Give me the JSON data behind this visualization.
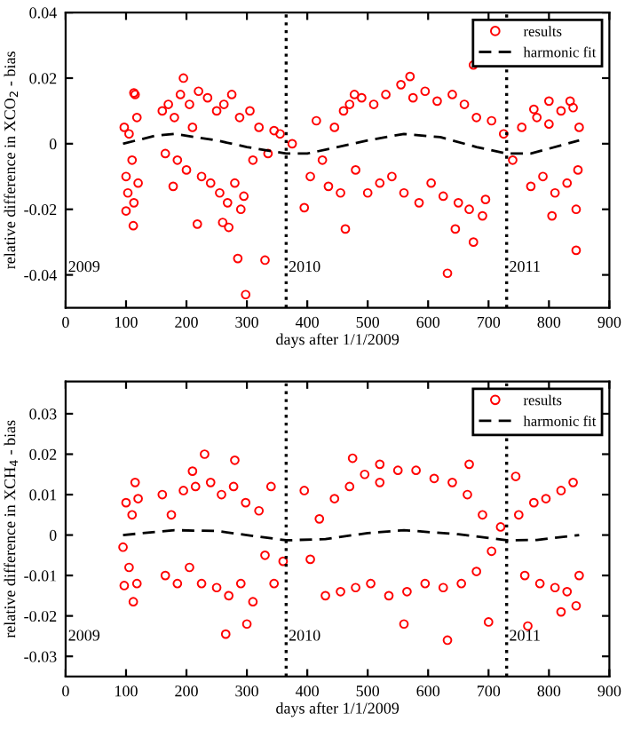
{
  "chart_data": [
    {
      "type": "scatter",
      "xlabel": "days after 1/1/2009",
      "ylabel": "relative difference in XCO$_{2}$ - bias",
      "xlim": [
        0,
        900
      ],
      "ylim": [
        -0.05,
        0.04
      ],
      "xticks": [
        0,
        100,
        200,
        300,
        400,
        500,
        600,
        700,
        800,
        900
      ],
      "yticks": [
        -0.04,
        -0.02,
        0,
        0.02,
        0.04
      ],
      "grid": false,
      "legend": "top right",
      "series": [
        {
          "name": "results",
          "color": "#ff0000",
          "marker": "circle",
          "x": [
            100,
            112,
            113,
            115,
            113,
            178,
            195,
            218,
            285,
            298,
            330,
            270,
            260,
            290,
            395,
            463,
            478,
            570,
            632,
            675,
            675,
            690,
            645,
            805,
            845,
            835,
            800,
            775,
            845,
            97,
            100,
            105,
            110,
            118,
            120,
            103,
            160,
            165,
            170,
            180,
            185,
            190,
            200,
            205,
            210,
            220,
            225,
            235,
            240,
            250,
            255,
            262,
            268,
            275,
            280,
            288,
            295,
            305,
            310,
            320,
            335,
            345,
            355,
            375,
            405,
            415,
            425,
            435,
            445,
            455,
            460,
            470,
            480,
            490,
            500,
            510,
            520,
            530,
            540,
            555,
            560,
            575,
            585,
            595,
            605,
            615,
            625,
            640,
            650,
            660,
            668,
            680,
            695,
            705,
            725,
            740,
            755,
            770,
            780,
            790,
            800,
            810,
            820,
            830,
            840,
            848,
            850
          ],
          "values": [
            -0.0205,
            -0.025,
            0.0155,
            0.015,
            -0.018,
            -0.013,
            0.02,
            -0.0245,
            -0.035,
            -0.046,
            -0.0355,
            -0.0255,
            -0.024,
            -0.02,
            -0.0195,
            -0.026,
            0.015,
            0.0205,
            -0.0395,
            0.024,
            -0.03,
            -0.022,
            -0.026,
            -0.022,
            -0.0325,
            0.013,
            0.013,
            0.0105,
            -0.02,
            0.005,
            -0.01,
            0.003,
            -0.005,
            0.008,
            -0.012,
            -0.015,
            0.01,
            -0.003,
            0.012,
            0.008,
            -0.005,
            0.015,
            -0.008,
            0.012,
            0.005,
            0.016,
            -0.01,
            0.014,
            -0.012,
            0.01,
            -0.015,
            0.012,
            -0.018,
            0.015,
            -0.012,
            0.008,
            -0.016,
            0.01,
            -0.005,
            0.005,
            -0.003,
            0.004,
            0.003,
            0.0,
            -0.01,
            0.007,
            -0.005,
            -0.013,
            0.005,
            -0.015,
            0.01,
            0.012,
            -0.008,
            0.014,
            -0.015,
            0.012,
            -0.012,
            0.015,
            -0.01,
            0.018,
            -0.015,
            0.014,
            -0.018,
            0.016,
            -0.012,
            0.013,
            -0.016,
            0.015,
            -0.018,
            0.012,
            -0.02,
            0.008,
            -0.017,
            0.007,
            0.003,
            -0.005,
            0.005,
            -0.013,
            0.008,
            -0.01,
            0.006,
            -0.015,
            0.01,
            -0.012,
            0.011,
            -0.008,
            0.005
          ]
        },
        {
          "name": "harmonic fit",
          "type": "line",
          "color": "#000000",
          "line_style": "dashed",
          "marker": "none",
          "x": [
            95,
            150,
            180,
            250,
            300,
            365,
            400,
            450,
            500,
            560,
            620,
            680,
            730,
            770,
            850
          ],
          "values": [
            0,
            0.0025,
            0.003,
            0.001,
            -0.001,
            -0.003,
            -0.003,
            -0.001,
            0.001,
            0.003,
            0.002,
            -0.001,
            -0.003,
            -0.003,
            0.001
          ]
        }
      ],
      "ref_lines": [
        {
          "axis": "x",
          "value": 365,
          "line_style": "dotted",
          "color": "#000000"
        },
        {
          "axis": "x",
          "value": 730,
          "line_style": "dotted",
          "color": "#000000"
        }
      ],
      "annotations": [
        "2009",
        "2010",
        "2011"
      ]
    },
    {
      "type": "scatter",
      "xlabel": "days after 1/1/2009",
      "ylabel": "relative difference in XCH$_{4}$ - bias",
      "xlim": [
        0,
        900
      ],
      "ylim": [
        -0.035,
        0.038
      ],
      "xticks": [
        0,
        100,
        200,
        300,
        400,
        500,
        600,
        700,
        800,
        900
      ],
      "yticks": [
        -0.03,
        -0.02,
        -0.01,
        0,
        0.01,
        0.02,
        0.03
      ],
      "grid": false,
      "legend": "top right",
      "series": [
        {
          "name": "results",
          "color": "#ff0000",
          "marker": "circle",
          "x": [
            97,
            112,
            115,
            230,
            265,
            280,
            300,
            310,
            340,
            345,
            475,
            520,
            560,
            632,
            668,
            700,
            745,
            765,
            820,
            845,
            210,
            360,
            95,
            100,
            105,
            110,
            118,
            120,
            160,
            165,
            175,
            185,
            195,
            205,
            215,
            225,
            240,
            250,
            258,
            270,
            278,
            290,
            298,
            320,
            330,
            395,
            405,
            420,
            430,
            445,
            455,
            470,
            480,
            495,
            505,
            520,
            535,
            550,
            565,
            580,
            595,
            610,
            625,
            640,
            655,
            665,
            680,
            690,
            705,
            720,
            750,
            760,
            775,
            785,
            795,
            810,
            820,
            830,
            840,
            850
          ],
          "values": [
            -0.0125,
            -0.0165,
            0.013,
            0.02,
            -0.0245,
            0.0185,
            -0.022,
            -0.0165,
            0.012,
            -0.012,
            0.019,
            0.0175,
            -0.022,
            -0.026,
            0.0175,
            -0.0215,
            0.0145,
            -0.0225,
            -0.019,
            -0.0175,
            0.0158,
            -0.0065,
            -0.003,
            0.008,
            -0.008,
            0.005,
            -0.012,
            0.009,
            0.01,
            -0.01,
            0.005,
            -0.012,
            0.011,
            -0.008,
            0.012,
            -0.012,
            0.013,
            -0.013,
            0.01,
            -0.015,
            0.012,
            -0.012,
            0.008,
            0.006,
            -0.005,
            0.011,
            -0.006,
            0.004,
            -0.015,
            0.009,
            -0.014,
            0.012,
            -0.013,
            0.015,
            -0.012,
            0.013,
            -0.015,
            0.016,
            -0.014,
            0.016,
            -0.012,
            0.014,
            -0.013,
            0.013,
            -0.012,
            0.01,
            -0.009,
            0.005,
            -0.004,
            0.002,
            0.005,
            -0.01,
            0.008,
            -0.012,
            0.009,
            -0.013,
            0.011,
            -0.014,
            0.013,
            -0.01
          ]
        },
        {
          "name": "harmonic fit",
          "type": "line",
          "color": "#000000",
          "line_style": "dashed",
          "marker": "none",
          "x": [
            95,
            180,
            250,
            300,
            365,
            430,
            500,
            560,
            650,
            730,
            780,
            850
          ],
          "values": [
            0,
            0.0012,
            0.001,
            0,
            -0.0013,
            -0.001,
            0.0005,
            0.0012,
            0.0002,
            -0.0013,
            -0.0012,
            0
          ]
        }
      ],
      "ref_lines": [
        {
          "axis": "x",
          "value": 365,
          "line_style": "dotted",
          "color": "#000000"
        },
        {
          "axis": "x",
          "value": 730,
          "line_style": "dotted",
          "color": "#000000"
        }
      ],
      "annotations": [
        "2009",
        "2010",
        "2011"
      ]
    }
  ]
}
